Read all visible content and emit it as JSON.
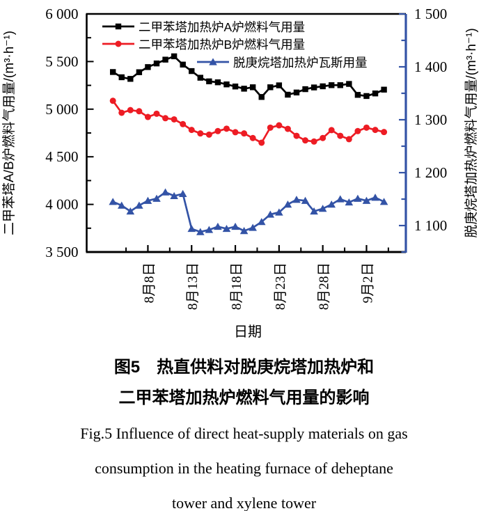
{
  "figure": {
    "caption_zh": [
      "图5　热直供料对脱庚烷塔加热炉和",
      "二甲苯塔加热炉燃料气用量的影响"
    ],
    "caption_en": [
      "Fig.5  Influence of direct heat-supply materials on gas",
      "consumption in the heating furnace of deheptane",
      "tower and xylene tower"
    ]
  },
  "chart_data": {
    "type": "line",
    "xlabel": "日期",
    "ylabel_left": "二甲苯塔A/B炉燃料气用量/(m³·h⁻¹)",
    "ylabel_right": "脱庚烷塔加热炉燃料气用量/(m³·h⁻¹)",
    "ylim_left": [
      3500,
      6000
    ],
    "ytick_values_left": [
      3500,
      4000,
      4500,
      5000,
      5500,
      6000
    ],
    "ytick_labels_left": [
      "3 500",
      "4 000",
      "4 500",
      "5 000",
      "5 500",
      "6 000"
    ],
    "ylim_right": [
      1050,
      1500
    ],
    "ytick_values_right": [
      1100,
      1200,
      1300,
      1400,
      1500
    ],
    "ytick_labels_right": [
      "1 100",
      "1 200",
      "1 300",
      "1 400",
      "1 500"
    ],
    "x_domain": [
      0,
      36.5
    ],
    "x_start_day": 3,
    "x_tick_days": [
      7,
      12,
      17,
      22,
      27,
      32
    ],
    "x_tick_labels": [
      "8月8日",
      "8月13日",
      "8月18日",
      "8月23日",
      "8月28日",
      "9月2日"
    ],
    "grid": false,
    "legend_position": "top-inside",
    "right_axis_color": "#3353a6",
    "series": [
      {
        "name": "二甲苯塔加热炉A炉燃料气用量",
        "axis": "left",
        "color": "#000000",
        "marker": "square",
        "values": [
          5390,
          5335,
          5318,
          5388,
          5442,
          5480,
          5520,
          5555,
          5468,
          5400,
          5330,
          5292,
          5282,
          5260,
          5238,
          5215,
          5230,
          5128,
          5230,
          5250,
          5152,
          5175,
          5210,
          5228,
          5240,
          5252,
          5252,
          5265,
          5150,
          5138,
          5165,
          5205
        ]
      },
      {
        "name": "二甲苯塔加热炉B炉燃料气用量",
        "axis": "left",
        "color": "#ed1c24",
        "marker": "circle",
        "values": [
          5088,
          4962,
          4990,
          4978,
          4918,
          4952,
          4905,
          4893,
          4843,
          4782,
          4745,
          4733,
          4770,
          4795,
          4758,
          4745,
          4697,
          4648,
          4806,
          4830,
          4793,
          4720,
          4672,
          4660,
          4697,
          4780,
          4720,
          4685,
          4770,
          4806,
          4782,
          4760
        ]
      },
      {
        "name": "脱庚烷塔加热炉瓦斯用量",
        "axis": "right",
        "color": "#3353a6",
        "marker": "triangle",
        "values": [
          1145,
          1138,
          1127,
          1138,
          1147,
          1151,
          1163,
          1156,
          1160,
          1094,
          1088,
          1092,
          1098,
          1094,
          1098,
          1090,
          1096,
          1107,
          1121,
          1125,
          1140,
          1149,
          1147,
          1127,
          1132,
          1140,
          1150,
          1144,
          1151,
          1147,
          1153,
          1145
        ]
      }
    ]
  }
}
